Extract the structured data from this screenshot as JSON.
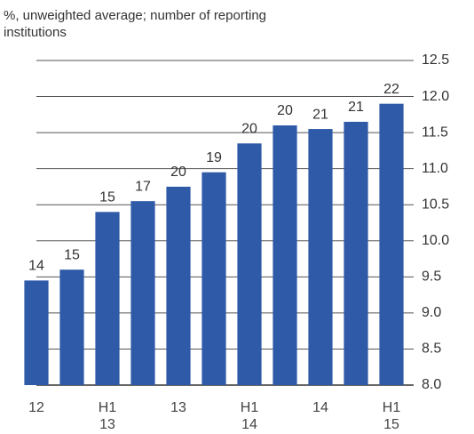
{
  "chart_data": {
    "type": "bar",
    "subtitle": "%, unweighted average; number of reporting\ninstitutions",
    "categories": [
      "12",
      null,
      "H1\n13",
      null,
      "13",
      null,
      "H1\n14",
      null,
      "14",
      null,
      "H1\n15"
    ],
    "values": [
      9.45,
      9.6,
      10.4,
      10.55,
      10.75,
      10.95,
      11.35,
      11.6,
      11.55,
      11.65,
      11.9
    ],
    "institutions": [
      14,
      15,
      15,
      17,
      20,
      19,
      20,
      20,
      21,
      21,
      22
    ],
    "color": "#2e5aa8",
    "ylim": [
      8.0,
      12.5
    ],
    "yticks": [
      {
        "value": 8,
        "label": "8.0"
      },
      8.5,
      {
        "value": 9,
        "label": "9.0"
      },
      9.5,
      {
        "value": 10,
        "label": "10.0"
      },
      10.5,
      {
        "value": 11,
        "label": "11.0"
      },
      11.5,
      {
        "value": 12,
        "label": "12.0"
      },
      12.5
    ],
    "grid": true,
    "y_axis_side": "right"
  }
}
